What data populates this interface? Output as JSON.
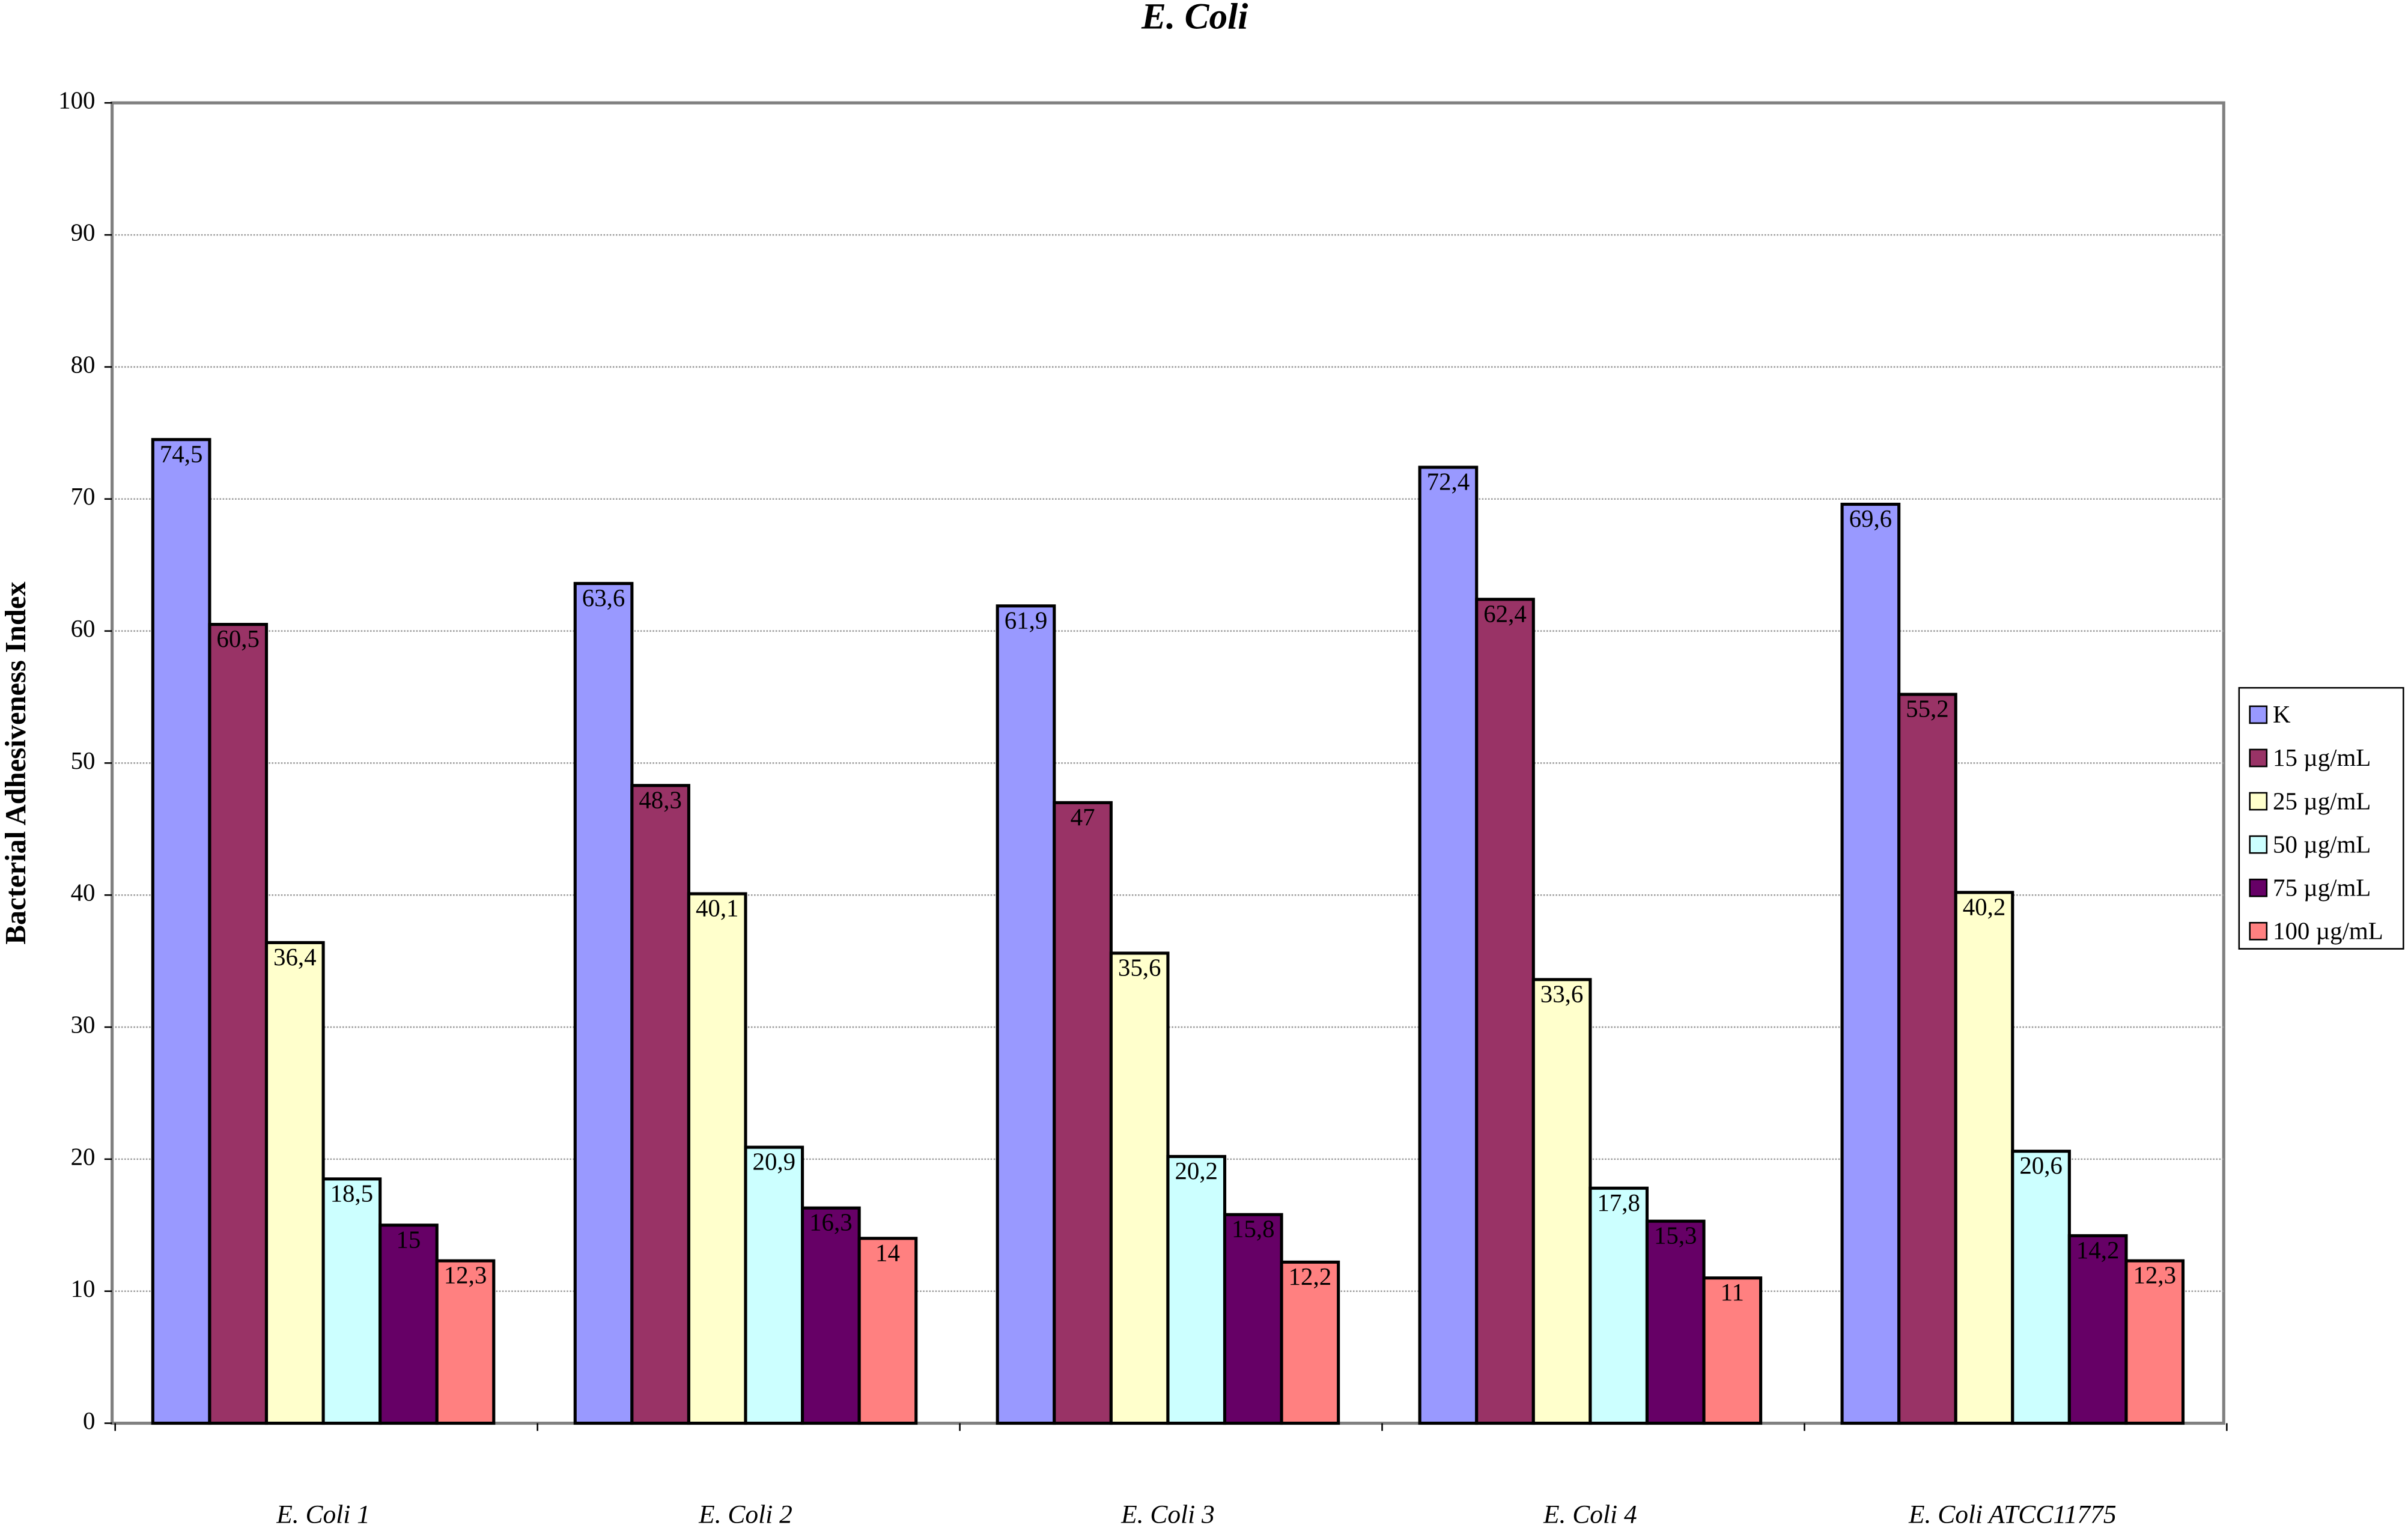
{
  "chart_data": {
    "type": "bar",
    "title": "E. Coli",
    "y_label": "Bacterial Adhesiveness Index",
    "categories": [
      "E. Coli 1",
      "E. Coli 2",
      "E. Coli 3",
      "E. Coli 4",
      "E. Coli ATCC11775"
    ],
    "series": [
      {
        "name": "K",
        "color": "#9999ff",
        "values": [
          74.5,
          63.6,
          61.9,
          72.4,
          69.6
        ],
        "value_labels": [
          "74,5",
          "63,6",
          "61,9",
          "72,4",
          "69,6"
        ]
      },
      {
        "name": "15 µg/mL",
        "color": "#993366",
        "values": [
          60.5,
          48.3,
          47,
          62.4,
          55.2
        ],
        "value_labels": [
          "60,5",
          "48,3",
          "47",
          "62,4",
          "55,2"
        ]
      },
      {
        "name": "25 µg/mL",
        "color": "#ffffcc",
        "values": [
          36.4,
          40.1,
          35.6,
          33.6,
          40.2
        ],
        "value_labels": [
          "36,4",
          "40,1",
          "35,6",
          "33,6",
          "40,2"
        ]
      },
      {
        "name": "50 µg/mL",
        "color": "#ccffff",
        "values": [
          18.5,
          20.9,
          20.2,
          17.8,
          20.6
        ],
        "value_labels": [
          "18,5",
          "20,9",
          "20,2",
          "17,8",
          "20,6"
        ]
      },
      {
        "name": "75 µg/mL",
        "color": "#660066",
        "values": [
          15,
          16.3,
          15.8,
          15.3,
          14.2
        ],
        "value_labels": [
          "15",
          "16,3",
          "15,8",
          "15,3",
          "14,2"
        ]
      },
      {
        "name": "100 µg/mL",
        "color": "#ff8080",
        "values": [
          12.3,
          14,
          12.2,
          11,
          12.3
        ],
        "value_labels": [
          "12,3",
          "14",
          "12,2",
          "11",
          "12,3"
        ]
      }
    ],
    "ylim": [
      0,
      100
    ],
    "yticks": [
      0,
      10,
      20,
      30,
      40,
      50,
      60,
      70,
      80,
      90,
      100
    ],
    "grid": true,
    "legend": "right"
  }
}
